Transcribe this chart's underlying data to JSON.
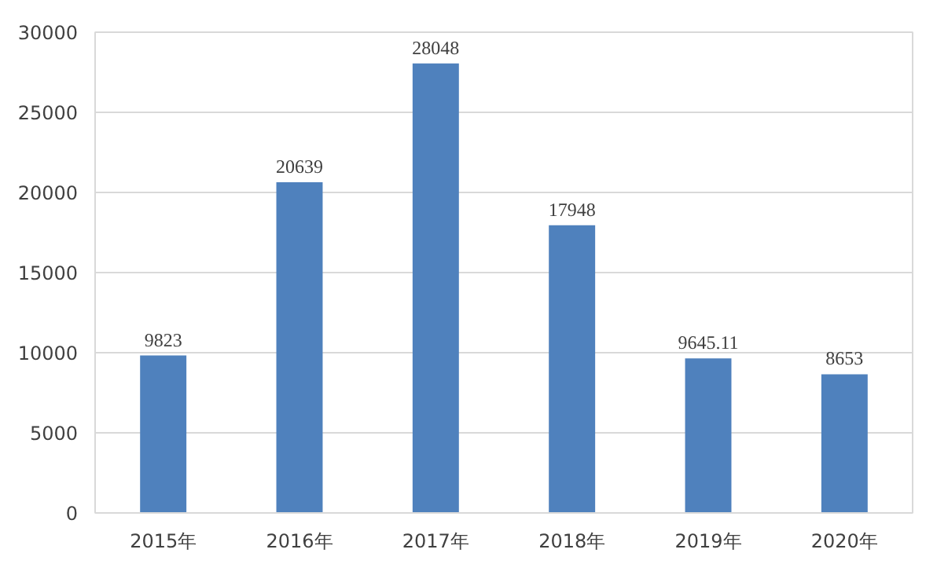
{
  "chart_data": {
    "type": "bar",
    "categories": [
      "2015年",
      "2016年",
      "2017年",
      "2018年",
      "2019年",
      "2020年"
    ],
    "values": [
      9823,
      20639,
      28048,
      17948,
      9645.11,
      8653
    ],
    "color": "#4f81bd",
    "ylim": [
      0,
      30000
    ],
    "yticks": [
      0,
      5000,
      10000,
      15000,
      20000,
      25000,
      30000
    ],
    "grid": "y",
    "data_labels": true
  }
}
